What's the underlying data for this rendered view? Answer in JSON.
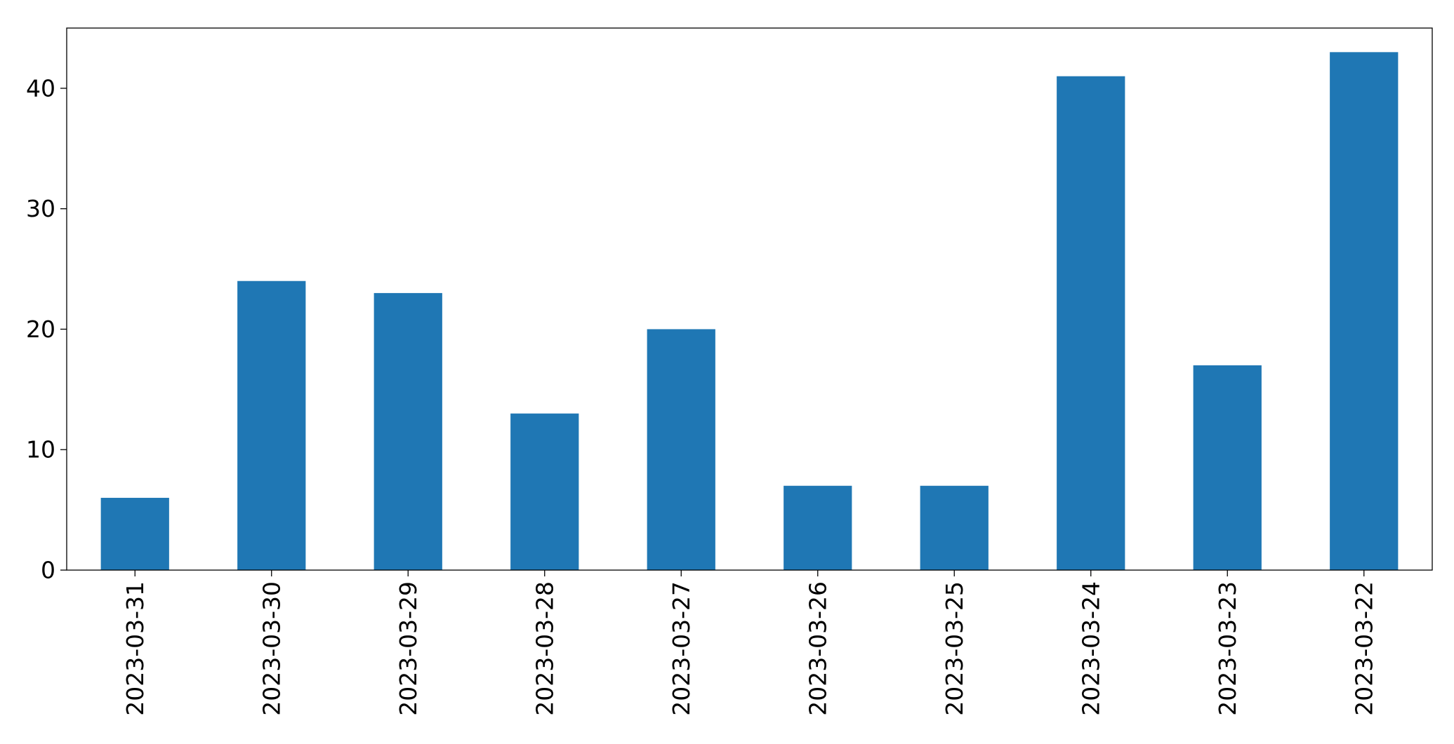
{
  "chart_data": {
    "type": "bar",
    "title": "",
    "xlabel": "",
    "ylabel": "",
    "categories": [
      "2023-03-31",
      "2023-03-30",
      "2023-03-29",
      "2023-03-28",
      "2023-03-27",
      "2023-03-26",
      "2023-03-25",
      "2023-03-24",
      "2023-03-23",
      "2023-03-22"
    ],
    "values": [
      6,
      24,
      23,
      13,
      20,
      7,
      7,
      41,
      17,
      43
    ],
    "ylim": [
      0,
      45
    ],
    "yticks": [
      0,
      10,
      20,
      30,
      40
    ],
    "ytick_labels": [
      "0",
      "10",
      "20",
      "30",
      "40"
    ],
    "bar_color": "#1f77b4",
    "grid": false,
    "legend": "none"
  }
}
